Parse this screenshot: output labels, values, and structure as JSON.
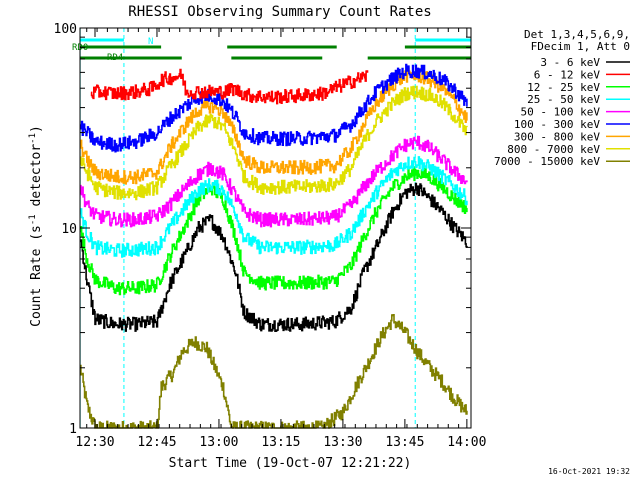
{
  "chart_data": {
    "type": "line",
    "title": "RHESSI Observing Summary Count Rates",
    "xlabel": "Start Time (19-Oct-07 12:21:22)",
    "ylabel": "Count Rate (s",
    "ylabel_sup": "-1",
    "ylabel_tail": " detector",
    "ylabel_sup2": "-1",
    "ylabel_close": ")",
    "yscale": "log",
    "ylim": [
      1,
      100
    ],
    "xlim_minutes": [
      746.37,
      841.0
    ],
    "x_ticks": [
      "12:30",
      "12:45",
      "13:00",
      "13:15",
      "13:30",
      "13:45",
      "14:00"
    ],
    "x_tick_minutes": [
      750,
      765,
      780,
      795,
      810,
      825,
      840
    ],
    "y_ticks": [
      "1",
      "10",
      "100"
    ],
    "y_tick_values": [
      1,
      10,
      100
    ],
    "legend_header": [
      "Det 1,3,4,5,6,9,",
      "FDecim 1, Att 0"
    ],
    "legend_position": "right",
    "timestamp": "16-Oct-2021 19:32",
    "flag_labels": {
      "rd0": "RD0",
      "rd4": "RD4",
      "n": "N"
    },
    "flags": {
      "rd0": [
        [
          746.4,
          766.0
        ],
        [
          782.0,
          808.5
        ],
        [
          825.0,
          841.0
        ]
      ],
      "rd4": [
        [
          746.4,
          771.0
        ],
        [
          783.0,
          805.0
        ],
        [
          816.0,
          841.0
        ]
      ],
      "n": [
        [
          746.4,
          757.0
        ],
        [
          827.5,
          841.0
        ]
      ]
    },
    "night_intervals": [
      [
        746.4,
        757.0
      ],
      [
        827.5,
        841.0
      ]
    ],
    "series": [
      {
        "name": "3 - 6 keV",
        "color": "#000000",
        "points": [
          [
            746.4,
            9
          ],
          [
            748,
            5.5
          ],
          [
            750,
            3.5
          ],
          [
            755,
            3.3
          ],
          [
            760,
            3.3
          ],
          [
            765,
            3.4
          ],
          [
            768,
            5.2
          ],
          [
            772,
            7.5
          ],
          [
            775,
            10
          ],
          [
            778,
            11
          ],
          [
            781,
            9
          ],
          [
            784,
            6
          ],
          [
            786,
            3.8
          ],
          [
            790,
            3.3
          ],
          [
            800,
            3.3
          ],
          [
            808,
            3.4
          ],
          [
            812,
            4
          ],
          [
            815,
            6
          ],
          [
            818,
            8
          ],
          [
            822,
            12
          ],
          [
            825,
            15
          ],
          [
            828,
            16
          ],
          [
            831,
            14
          ],
          [
            834,
            12
          ],
          [
            837,
            10
          ],
          [
            840,
            8.5
          ]
        ]
      },
      {
        "name": "6 - 12 keV",
        "color": "#ff0000",
        "points": [
          [
            749,
            47
          ],
          [
            751,
            48
          ],
          [
            755,
            47
          ],
          [
            760,
            48
          ],
          [
            764,
            50
          ],
          [
            766,
            55
          ],
          [
            771,
            58
          ],
          [
            772,
            48
          ],
          [
            782,
            48
          ],
          [
            783,
            50
          ],
          [
            787,
            46
          ],
          [
            793,
            45
          ],
          [
            800,
            46
          ],
          [
            805,
            47
          ],
          [
            810,
            52
          ],
          [
            816,
            58
          ]
        ]
      },
      {
        "name": "12 - 25 keV",
        "color": "#00ff00",
        "points": [
          [
            746.4,
            10
          ],
          [
            748,
            7
          ],
          [
            750,
            5.5
          ],
          [
            755,
            5
          ],
          [
            760,
            5
          ],
          [
            765,
            5.2
          ],
          [
            768,
            7.2
          ],
          [
            772,
            10.5
          ],
          [
            775,
            14
          ],
          [
            778,
            16
          ],
          [
            781,
            14
          ],
          [
            784,
            9
          ],
          [
            786,
            6
          ],
          [
            790,
            5.3
          ],
          [
            800,
            5.3
          ],
          [
            808,
            5.4
          ],
          [
            812,
            6.5
          ],
          [
            815,
            9
          ],
          [
            818,
            12
          ],
          [
            822,
            16
          ],
          [
            825,
            18
          ],
          [
            828,
            19
          ],
          [
            831,
            18
          ],
          [
            834,
            16
          ],
          [
            837,
            14
          ],
          [
            840,
            12.5
          ]
        ]
      },
      {
        "name": "25 - 50 keV",
        "color": "#00ffff",
        "points": [
          [
            746.4,
            12
          ],
          [
            748,
            9.5
          ],
          [
            750,
            8
          ],
          [
            755,
            7.7
          ],
          [
            760,
            7.8
          ],
          [
            765,
            8
          ],
          [
            768,
            10
          ],
          [
            772,
            13
          ],
          [
            775,
            15.5
          ],
          [
            778,
            16.5
          ],
          [
            781,
            15.5
          ],
          [
            784,
            12
          ],
          [
            786,
            9
          ],
          [
            790,
            8
          ],
          [
            800,
            8
          ],
          [
            808,
            8.2
          ],
          [
            812,
            9.5
          ],
          [
            815,
            12
          ],
          [
            818,
            15
          ],
          [
            822,
            19
          ],
          [
            825,
            21
          ],
          [
            828,
            21.5
          ],
          [
            831,
            20
          ],
          [
            834,
            18
          ],
          [
            837,
            16
          ],
          [
            840,
            14
          ]
        ]
      },
      {
        "name": "50 - 100 keV",
        "color": "#ff00ff",
        "points": [
          [
            746.4,
            16
          ],
          [
            748,
            13
          ],
          [
            750,
            11.5
          ],
          [
            755,
            11
          ],
          [
            760,
            11
          ],
          [
            765,
            11.5
          ],
          [
            768,
            13
          ],
          [
            772,
            16
          ],
          [
            775,
            18.5
          ],
          [
            778,
            20
          ],
          [
            781,
            18.5
          ],
          [
            784,
            14.5
          ],
          [
            786,
            12
          ],
          [
            790,
            11
          ],
          [
            800,
            11
          ],
          [
            808,
            11.3
          ],
          [
            812,
            13
          ],
          [
            815,
            16
          ],
          [
            818,
            19
          ],
          [
            822,
            23
          ],
          [
            825,
            26
          ],
          [
            828,
            27
          ],
          [
            831,
            25
          ],
          [
            834,
            22
          ],
          [
            837,
            19
          ],
          [
            840,
            17
          ]
        ]
      },
      {
        "name": "100 - 300 keV",
        "color": "#0000ff",
        "points": [
          [
            746.4,
            32
          ],
          [
            748,
            30
          ],
          [
            750,
            27
          ],
          [
            755,
            26
          ],
          [
            760,
            27
          ],
          [
            765,
            30
          ],
          [
            768,
            35
          ],
          [
            772,
            41
          ],
          [
            775,
            45
          ],
          [
            778,
            46
          ],
          [
            781,
            43
          ],
          [
            784,
            36
          ],
          [
            786,
            30
          ],
          [
            790,
            28
          ],
          [
            800,
            28
          ],
          [
            808,
            29
          ],
          [
            812,
            33
          ],
          [
            815,
            40
          ],
          [
            818,
            48
          ],
          [
            822,
            56
          ],
          [
            825,
            61
          ],
          [
            828,
            61
          ],
          [
            831,
            59
          ],
          [
            834,
            55
          ],
          [
            837,
            49
          ],
          [
            840,
            42
          ]
        ]
      },
      {
        "name": "300 - 800 keV",
        "color": "#ffa500",
        "points": [
          [
            746.4,
            26
          ],
          [
            748,
            22
          ],
          [
            750,
            19
          ],
          [
            755,
            18
          ],
          [
            760,
            18
          ],
          [
            765,
            19
          ],
          [
            768,
            25
          ],
          [
            772,
            33
          ],
          [
            775,
            39
          ],
          [
            778,
            41
          ],
          [
            781,
            38
          ],
          [
            784,
            29
          ],
          [
            786,
            22
          ],
          [
            790,
            20
          ],
          [
            800,
            20
          ],
          [
            808,
            20.5
          ],
          [
            812,
            25
          ],
          [
            815,
            33
          ],
          [
            818,
            42
          ],
          [
            822,
            52
          ],
          [
            825,
            58
          ],
          [
            828,
            58
          ],
          [
            831,
            55
          ],
          [
            834,
            50
          ],
          [
            837,
            43
          ],
          [
            840,
            35
          ]
        ]
      },
      {
        "name": "800 - 7000 keV",
        "color": "#e0e000",
        "points": [
          [
            746.4,
            22
          ],
          [
            748,
            19
          ],
          [
            750,
            16
          ],
          [
            755,
            15
          ],
          [
            760,
            15
          ],
          [
            765,
            16
          ],
          [
            768,
            20
          ],
          [
            772,
            26
          ],
          [
            775,
            32
          ],
          [
            778,
            35
          ],
          [
            781,
            32
          ],
          [
            784,
            24
          ],
          [
            786,
            18
          ],
          [
            790,
            16
          ],
          [
            800,
            16
          ],
          [
            808,
            16.5
          ],
          [
            812,
            20
          ],
          [
            815,
            27
          ],
          [
            818,
            34
          ],
          [
            822,
            42
          ],
          [
            825,
            47
          ],
          [
            828,
            48
          ],
          [
            831,
            46
          ],
          [
            834,
            42
          ],
          [
            837,
            36
          ],
          [
            840,
            30
          ]
        ]
      },
      {
        "name": "7000 - 15000 keV",
        "color": "#808000",
        "points": [
          [
            746.4,
            2.0
          ],
          [
            748,
            1.3
          ],
          [
            750,
            1.0
          ],
          [
            760,
            1.0
          ],
          [
            765,
            1.0
          ],
          [
            766,
            1.6
          ],
          [
            769,
            1.9
          ],
          [
            771,
            2.4
          ],
          [
            774,
            2.7
          ],
          [
            777,
            2.5
          ],
          [
            779,
            2.0
          ],
          [
            781,
            1.6
          ],
          [
            783,
            1.0
          ],
          [
            790,
            1.0
          ],
          [
            805,
            1.0
          ],
          [
            810,
            1.2
          ],
          [
            813,
            1.6
          ],
          [
            816,
            2.1
          ],
          [
            819,
            2.8
          ],
          [
            822,
            3.5
          ],
          [
            825,
            3.0
          ],
          [
            828,
            2.4
          ],
          [
            831,
            2.0
          ],
          [
            834,
            1.7
          ],
          [
            837,
            1.4
          ],
          [
            840,
            1.2
          ]
        ]
      }
    ]
  }
}
